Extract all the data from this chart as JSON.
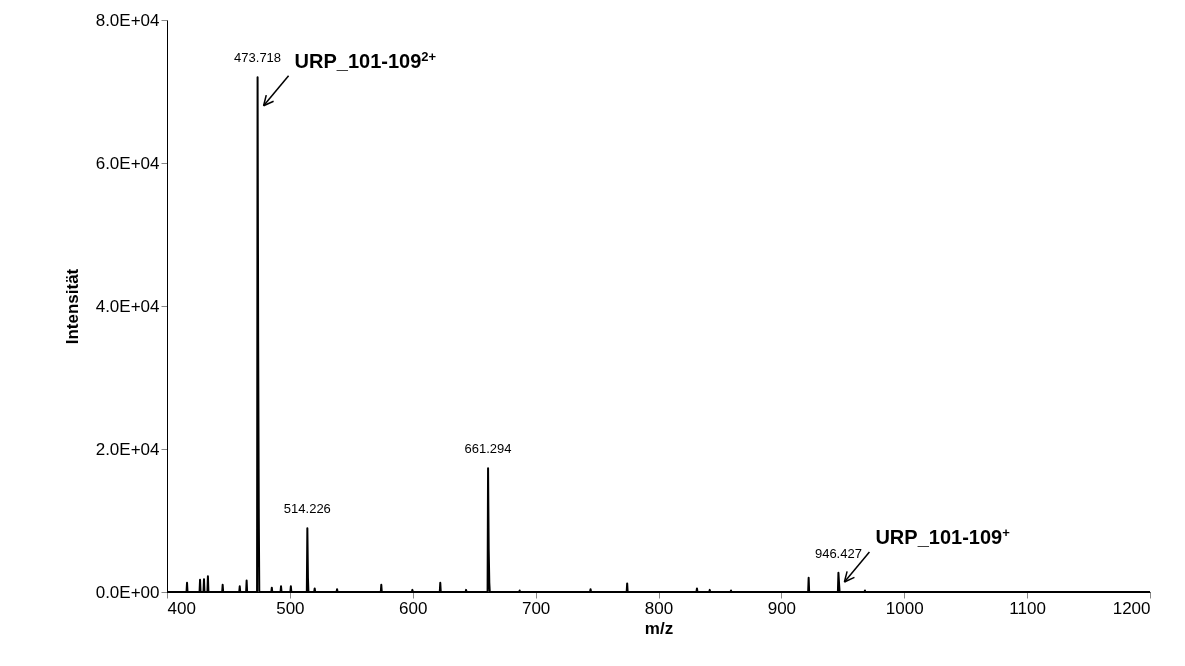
{
  "chart_data": {
    "type": "line",
    "xlabel": "m/z",
    "ylabel": "Intensität",
    "x": [
      400,
      415.9,
      416.3,
      416.7,
      426.5,
      426.9,
      427.3,
      429.7,
      430.1,
      430.5,
      432.9,
      433.3,
      433.7,
      444.9,
      445.3,
      445.7,
      458.8,
      459.2,
      459.6,
      464.4,
      464.8,
      465.2,
      473.3,
      473.718,
      474.2,
      474.7,
      475.1,
      484.9,
      485.3,
      485.7,
      492.4,
      492.8,
      493.2,
      500.4,
      500.8,
      501.2,
      513.8,
      514.226,
      514.7,
      515.1,
      519.8,
      520.2,
      520.6,
      538,
      538.4,
      538.8,
      574,
      574.4,
      574.8,
      599.3,
      599.7,
      600.1,
      622,
      622.4,
      622.8,
      643,
      643.4,
      643.8,
      660.9,
      661.294,
      661.8,
      662.3,
      662.7,
      686.6,
      687,
      687.4,
      744.3,
      744.7,
      745.1,
      774.1,
      774.5,
      774.9,
      830.9,
      831.3,
      831.7,
      841.3,
      841.7,
      842.1,
      858.6,
      859,
      859.4,
      921.8,
      922.2,
      922.6,
      946,
      946.427,
      947,
      947.4,
      967.6,
      968,
      968.4,
      1200
    ],
    "series": [
      {
        "color": "#000000",
        "values": [
          0,
          0,
          1300,
          0,
          0,
          1700,
          0,
          0,
          1800,
          0,
          0,
          2200,
          0,
          0,
          1000,
          0,
          0,
          800,
          0,
          0,
          1600,
          0,
          0,
          72000,
          35000,
          10500,
          0,
          0,
          600,
          0,
          0,
          800,
          0,
          0,
          800,
          0,
          0,
          8900,
          2000,
          0,
          0,
          500,
          0,
          0,
          400,
          0,
          0,
          1000,
          0,
          0,
          300,
          0,
          0,
          1300,
          0,
          0,
          300,
          0,
          0,
          17300,
          6000,
          1300,
          0,
          0,
          200,
          0,
          0,
          400,
          0,
          0,
          1200,
          0,
          0,
          500,
          0,
          0,
          300,
          0,
          0,
          200,
          0,
          0,
          2000,
          0,
          0,
          2700,
          1000,
          0,
          0,
          200,
          0,
          0
        ]
      }
    ],
    "xlim": [
      400,
      1200
    ],
    "xticks": [
      400,
      500,
      600,
      700,
      800,
      900,
      1000,
      1100,
      1200
    ],
    "ylim": [
      0,
      80000
    ],
    "yticks": [
      {
        "value": 0,
        "label": "0.0E+00"
      },
      {
        "value": 20000,
        "label": "2.0E+04"
      },
      {
        "value": 40000,
        "label": "4.0E+04"
      },
      {
        "value": 60000,
        "label": "6.0E+04"
      },
      {
        "value": 80000,
        "label": "8.0E+04"
      }
    ],
    "grid": false,
    "marker": "none",
    "line_style": "solid",
    "annotations": [
      {
        "text": "473.718",
        "x": 473.718,
        "y": 72000
      },
      {
        "text": "514.226",
        "x": 514.226,
        "y": 8900
      },
      {
        "text": "661.294",
        "x": 661.294,
        "y": 17300
      },
      {
        "text": "946.427",
        "x": 946.427,
        "y": 2700
      },
      {
        "text": "URP_101-109$^{2+}$",
        "x": 473.718,
        "y": 68000
      },
      {
        "text": "URP_101-109$^{+}$",
        "x": 946.427,
        "y": 1400
      }
    ]
  }
}
